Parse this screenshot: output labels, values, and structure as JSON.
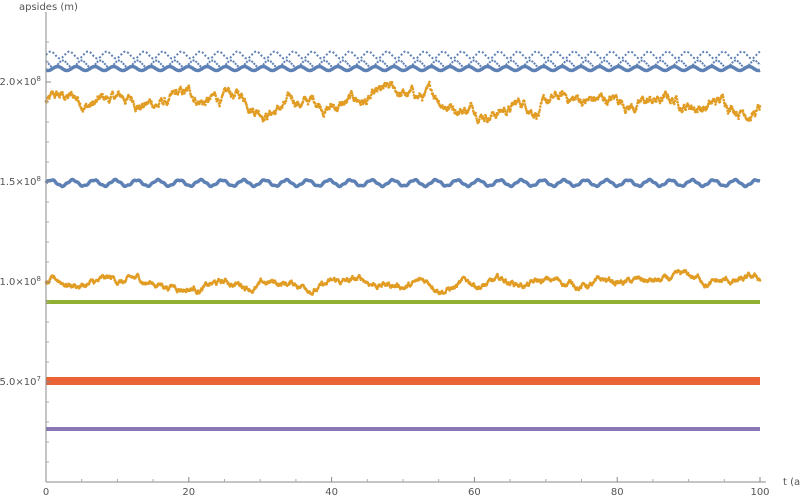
{
  "chart_data": {
    "type": "scatter",
    "title": "",
    "xlabel": "t (a)",
    "ylabel": "apsides (m)",
    "xlim": [
      0,
      100
    ],
    "ylim": [
      0,
      230000000
    ],
    "grid": false,
    "legend": "none",
    "x_ticks": [
      {
        "value": 0,
        "label": "0"
      },
      {
        "value": 20,
        "label": "20"
      },
      {
        "value": 40,
        "label": "40"
      },
      {
        "value": 60,
        "label": "60"
      },
      {
        "value": 80,
        "label": "80"
      },
      {
        "value": 100,
        "label": "100"
      }
    ],
    "y_ticks": [
      {
        "value": 50000000,
        "mantissa": "5.0",
        "exponent": "7"
      },
      {
        "value": 100000000,
        "mantissa": "1.0",
        "exponent": "8"
      },
      {
        "value": 150000000,
        "mantissa": "1.5",
        "exponent": "8"
      },
      {
        "value": 200000000,
        "mantissa": "2.0",
        "exponent": "8"
      }
    ],
    "series": [
      {
        "color": "#5E81B5",
        "style": "upper-band",
        "mean": 209500000,
        "low": 204000000,
        "high": 214000000
      },
      {
        "color": "#E19C24",
        "style": "noisy-scatter",
        "mean": 190000000,
        "low": 172000000,
        "high": 208000000
      },
      {
        "color": "#5E81B5",
        "style": "wave",
        "mean": 149500000,
        "amplitude": 1500000
      },
      {
        "color": "#E19C24",
        "style": "noisy-scatter",
        "mean": 99000000,
        "low": 89000000,
        "high": 111000000
      },
      {
        "color": "#8FB032",
        "style": "flat",
        "mean": 90000000
      },
      {
        "color": "#EB6235",
        "style": "thick",
        "mean": 50500000,
        "low": 48500000,
        "high": 52500000
      },
      {
        "color": "#8778B3",
        "style": "flat",
        "mean": 26500000
      }
    ]
  }
}
